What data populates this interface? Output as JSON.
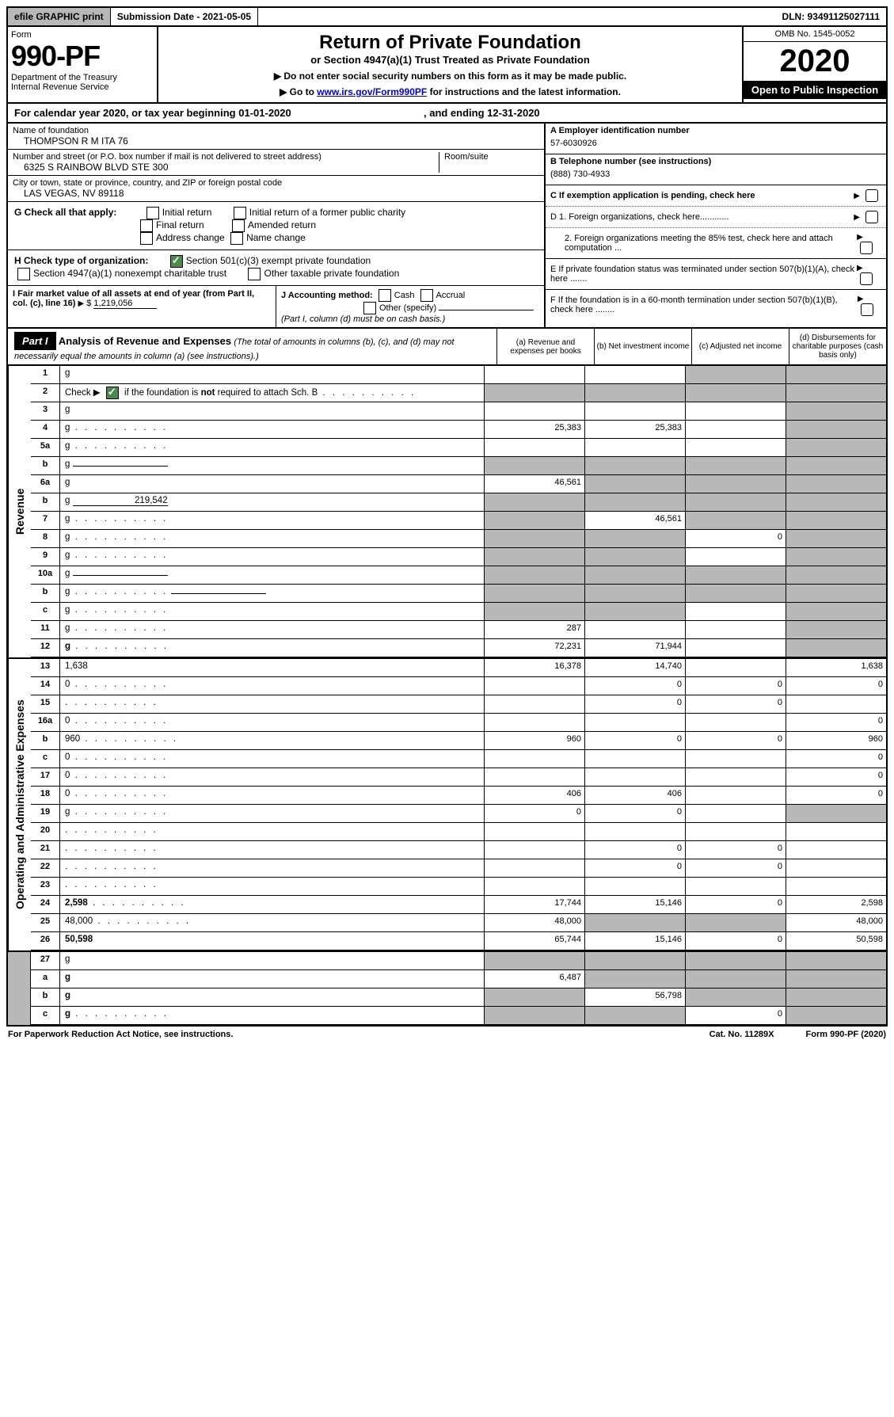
{
  "topbar": {
    "efile": "efile GRAPHIC print",
    "subdate_label": "Submission Date - ",
    "subdate": "2021-05-05",
    "dln_label": "DLN: ",
    "dln": "93491125027111"
  },
  "header": {
    "form_word": "Form",
    "form_num": "990-PF",
    "dept": "Department of the Treasury",
    "irs": "Internal Revenue Service",
    "title": "Return of Private Foundation",
    "subtitle": "or Section 4947(a)(1) Trust Treated as Private Foundation",
    "instr1": "▶ Do not enter social security numbers on this form as it may be made public.",
    "instr2_pre": "▶ Go to ",
    "instr2_link": "www.irs.gov/Form990PF",
    "instr2_post": " for instructions and the latest information.",
    "omb": "OMB No. 1545-0052",
    "year": "2020",
    "open": "Open to Public Inspection"
  },
  "calyear": {
    "pre": "For calendar year 2020, or tax year beginning ",
    "begin": "01-01-2020",
    "mid": " , and ending ",
    "end": "12-31-2020"
  },
  "info": {
    "name_label": "Name of foundation",
    "name": "THOMPSON R M ITA 76",
    "addr_label": "Number and street (or P.O. box number if mail is not delivered to street address)",
    "room_label": "Room/suite",
    "addr": "6325 S RAINBOW BLVD STE 300",
    "city_label": "City or town, state or province, country, and ZIP or foreign postal code",
    "city": "LAS VEGAS, NV  89118",
    "ein_label": "A Employer identification number",
    "ein": "57-6030926",
    "tel_label": "B Telephone number (see instructions)",
    "tel": "(888) 730-4933",
    "c_label": "C If exemption application is pending, check here",
    "d1": "D 1. Foreign organizations, check here............",
    "d2": "2. Foreign organizations meeting the 85% test, check here and attach computation ...",
    "e_label": "E  If private foundation status was terminated under section 507(b)(1)(A), check here .......",
    "f_label": "F  If the foundation is in a 60-month termination under section 507(b)(1)(B), check here ........"
  },
  "g": {
    "label": "G Check all that apply:",
    "opts": [
      "Initial return",
      "Initial return of a former public charity",
      "Final return",
      "Amended return",
      "Address change",
      "Name change"
    ]
  },
  "h": {
    "label": "H Check type of organization:",
    "opt1": "Section 501(c)(3) exempt private foundation",
    "opt2": "Section 4947(a)(1) nonexempt charitable trust",
    "opt3": "Other taxable private foundation"
  },
  "i": {
    "label": "I Fair market value of all assets at end of year (from Part II, col. (c), line 16)",
    "val": "1,219,056"
  },
  "j": {
    "label": "J Accounting method:",
    "cash": "Cash",
    "accrual": "Accrual",
    "other": "Other (specify)",
    "note": "(Part I, column (d) must be on cash basis.)"
  },
  "part1": {
    "hdr": "Part I",
    "title": "Analysis of Revenue and Expenses",
    "note": " (The total of amounts in columns (b), (c), and (d) may not necessarily equal the amounts in column (a) (see instructions).)",
    "cols": {
      "a": "(a) Revenue and expenses per books",
      "b": "(b) Net investment income",
      "c": "(c) Adjusted net income",
      "d": "(d) Disbursements for charitable purposes (cash basis only)"
    }
  },
  "vtabs": {
    "rev": "Revenue",
    "exp": "Operating and Administrative Expenses"
  },
  "rows": [
    {
      "n": "1",
      "d": "g",
      "a": "",
      "b": "",
      "c": "g"
    },
    {
      "n": "2",
      "d": "g",
      "dots": true,
      "a": "g",
      "b": "g",
      "c": "g",
      "checked": true
    },
    {
      "n": "3",
      "d": "g",
      "a": "",
      "b": "",
      "c": ""
    },
    {
      "n": "4",
      "d": "g",
      "dots": true,
      "a": "25,383",
      "b": "25,383",
      "c": ""
    },
    {
      "n": "5a",
      "d": "g",
      "dots": true,
      "a": "",
      "b": "",
      "c": ""
    },
    {
      "n": "b",
      "d": "g",
      "inline": true,
      "a": "g",
      "b": "g",
      "c": "g"
    },
    {
      "n": "6a",
      "d": "g",
      "a": "46,561",
      "b": "g",
      "c": "g"
    },
    {
      "n": "b",
      "d": "g",
      "inline": true,
      "iv": "219,542",
      "a": "g",
      "b": "g",
      "c": "g"
    },
    {
      "n": "7",
      "d": "g",
      "dots": true,
      "a": "g",
      "b": "46,561",
      "c": "g"
    },
    {
      "n": "8",
      "d": "g",
      "dots": true,
      "a": "g",
      "b": "g",
      "c": "0"
    },
    {
      "n": "9",
      "d": "g",
      "dots": true,
      "a": "g",
      "b": "g",
      "c": ""
    },
    {
      "n": "10a",
      "d": "g",
      "inline": true,
      "a": "g",
      "b": "g",
      "c": "g"
    },
    {
      "n": "b",
      "d": "g",
      "dots": true,
      "inline": true,
      "a": "g",
      "b": "g",
      "c": "g"
    },
    {
      "n": "c",
      "d": "g",
      "dots": true,
      "a": "g",
      "b": "g",
      "c": ""
    },
    {
      "n": "11",
      "d": "g",
      "dots": true,
      "a": "287",
      "b": "",
      "c": ""
    },
    {
      "n": "12",
      "d": "g",
      "dots": true,
      "bold": true,
      "a": "72,231",
      "b": "71,944",
      "c": ""
    }
  ],
  "exprows": [
    {
      "n": "13",
      "d": "1,638",
      "a": "16,378",
      "b": "14,740",
      "c": ""
    },
    {
      "n": "14",
      "d": "0",
      "dots": true,
      "a": "",
      "b": "0",
      "c": "0"
    },
    {
      "n": "15",
      "d": "",
      "dots": true,
      "a": "",
      "b": "0",
      "c": "0"
    },
    {
      "n": "16a",
      "d": "0",
      "dots": true,
      "a": "",
      "b": "",
      "c": ""
    },
    {
      "n": "b",
      "d": "960",
      "dots": true,
      "a": "960",
      "b": "0",
      "c": "0"
    },
    {
      "n": "c",
      "d": "0",
      "dots": true,
      "a": "",
      "b": "",
      "c": ""
    },
    {
      "n": "17",
      "d": "0",
      "dots": true,
      "a": "",
      "b": "",
      "c": ""
    },
    {
      "n": "18",
      "d": "0",
      "dots": true,
      "a": "406",
      "b": "406",
      "c": ""
    },
    {
      "n": "19",
      "d": "g",
      "dots": true,
      "a": "0",
      "b": "0",
      "c": ""
    },
    {
      "n": "20",
      "d": "",
      "dots": true,
      "a": "",
      "b": "",
      "c": ""
    },
    {
      "n": "21",
      "d": "",
      "dots": true,
      "a": "",
      "b": "0",
      "c": "0"
    },
    {
      "n": "22",
      "d": "",
      "dots": true,
      "a": "",
      "b": "0",
      "c": "0"
    },
    {
      "n": "23",
      "d": "",
      "dots": true,
      "a": "",
      "b": "",
      "c": ""
    },
    {
      "n": "24",
      "d": "2,598",
      "dots": true,
      "bold": true,
      "a": "17,744",
      "b": "15,146",
      "c": "0"
    },
    {
      "n": "25",
      "d": "48,000",
      "dots": true,
      "a": "48,000",
      "b": "g",
      "c": "g"
    },
    {
      "n": "26",
      "d": "50,598",
      "bold": true,
      "a": "65,744",
      "b": "15,146",
      "c": "0"
    }
  ],
  "netrows": [
    {
      "n": "27",
      "d": "g",
      "a": "g",
      "b": "g",
      "c": "g"
    },
    {
      "n": "a",
      "d": "g",
      "bold": true,
      "a": "6,487",
      "b": "g",
      "c": "g"
    },
    {
      "n": "b",
      "d": "g",
      "bold": true,
      "a": "g",
      "b": "56,798",
      "c": "g"
    },
    {
      "n": "c",
      "d": "g",
      "bold": true,
      "dots": true,
      "a": "g",
      "b": "g",
      "c": "0"
    }
  ],
  "footer": {
    "left": "For Paperwork Reduction Act Notice, see instructions.",
    "mid": "Cat. No. 11289X",
    "right": "Form 990-PF (2020)"
  },
  "colors": {
    "grey": "#b8b8b8",
    "green": "#4a8a4a",
    "link": "#0000cc"
  }
}
